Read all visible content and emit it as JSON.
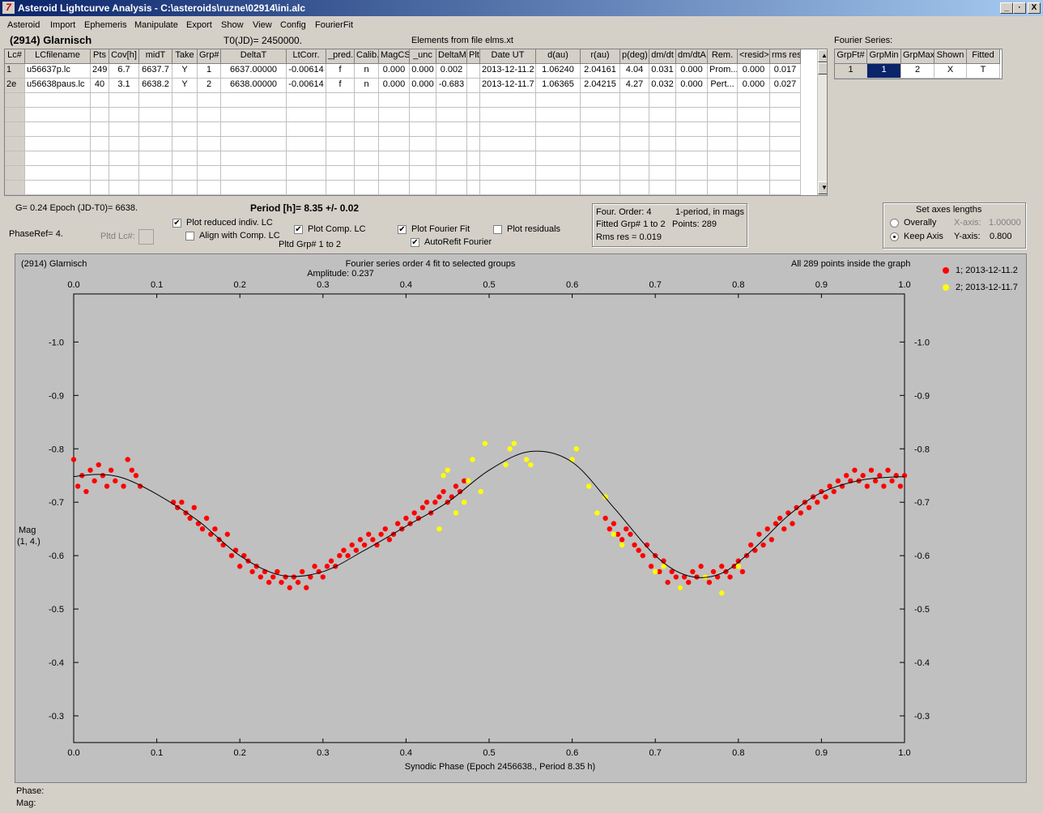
{
  "window": {
    "title": "Asteroid Lightcurve Analysis - C:\\asteroids\\ruzne\\02914\\ini.alc",
    "buttons": [
      "_",
      "·",
      "X"
    ]
  },
  "menu": [
    "Asteroid",
    "Import",
    "Ephemeris",
    "Manipulate",
    "Export",
    "Show",
    "View",
    "Config",
    "FourierFit"
  ],
  "header": {
    "asteroid": "(2914) Glarnisch",
    "t0": "T0(JD)= 2450000.",
    "elements": "Elements from file elms.xt",
    "fourier_series_label": "Fourier Series:"
  },
  "lc_table": {
    "columns": [
      "Lc#",
      "LCfilename",
      "Pts",
      "Cov[h]",
      "midT",
      "Take",
      "Grp#",
      "DeltaT",
      "LtCorr.",
      "_pred.",
      "Calib.",
      "MagCS",
      "_unc",
      "DeltaM",
      "Plt",
      "Date UT",
      "d(au)",
      "r(au)",
      "p(deg)",
      "dm/dt",
      "dm/dtA",
      "Rem.",
      "<resid>",
      "rms res"
    ],
    "rows": [
      [
        "1",
        "u56637p.lc",
        "249",
        "6.7",
        "6637.7",
        "Y",
        "1",
        "6637.00000",
        "-0.00614",
        "f",
        "n",
        "0.000",
        "0.000",
        "0.002",
        "",
        "2013-12-11.2",
        "1.06240",
        "2.04161",
        "4.04",
        "0.031",
        "0.000",
        "Prom...",
        "0.000",
        "0.017"
      ],
      [
        "2e",
        "u56638paus.lc",
        "40",
        "3.1",
        "6638.2",
        "Y",
        "2",
        "6638.00000",
        "-0.00614",
        "f",
        "n",
        "0.000",
        "0.000",
        "-0.683",
        "",
        "2013-12-11.7",
        "1.06365",
        "2.04215",
        "4.27",
        "0.032",
        "0.000",
        "Pert...",
        "0.000",
        "0.027"
      ]
    ],
    "empty_rows": 7
  },
  "fourier_table": {
    "columns": [
      "GrpFt#",
      "GrpMin",
      "GrpMax",
      "Shown",
      "Fitted"
    ],
    "rows": [
      [
        "1",
        "1",
        "2",
        "X",
        "T"
      ]
    ]
  },
  "controls": {
    "g_epoch": "G= 0.24   Epoch (JD-T0)= 6638.",
    "period": "Period [h]= 8.35 +/- 0.02",
    "phase_ref": "PhaseRef= 4.",
    "pltd_lc": "Pltd Lc#:",
    "plot_reduced": "Plot reduced indiv. LC",
    "align_comp": "Align with Comp. LC",
    "plot_comp": "Plot Comp. LC",
    "pltd_grp": "Pltd Grp#  1   to   2",
    "plot_fourier": "Plot Fourier Fit",
    "autorefit": "AutoRefit Fourier",
    "plot_residuals": "Plot residuals",
    "checked": {
      "plot_reduced": true,
      "align_comp": false,
      "plot_comp": true,
      "plot_fourier": true,
      "autorefit": true,
      "plot_residuals": false
    },
    "info": {
      "four_order": "Four. Order:  4",
      "one_period": "1-period, in mags",
      "fitted_grp": "Fitted Grp# 1 to 2",
      "points": "Points: 289",
      "rms": "Rms res     = 0.019"
    },
    "axes": {
      "title": "Set axes lengths",
      "overall": "Overally",
      "keep": "Keep Axis",
      "xaxis_label": "X-axis:",
      "xaxis_val": "1.00000",
      "yaxis_label": "Y-axis:",
      "yaxis_val": "0.800",
      "selected": "keep"
    }
  },
  "plot": {
    "name": "(2914) Glarnisch",
    "subtitle1": "Fourier series order 4 fit to selected groups",
    "subtitle2": "Amplitude: 0.237",
    "points_note": "All 289 points inside the graph",
    "ylabel1": "Mag",
    "ylabel2": "(1, 4.)",
    "xlabel": "Synodic Phase (Epoch 2456638., Period 8.35 h)",
    "legend": [
      {
        "label": "1; 2013-12-11.2",
        "color": "#ff0000"
      },
      {
        "label": "2; 2013-12-11.7",
        "color": "#ffff00"
      }
    ]
  },
  "status": {
    "phase": "Phase:",
    "mag": "Mag:"
  },
  "chart_data": {
    "type": "scatter",
    "xlabel": "Synodic Phase (Epoch 2456638., Period 8.35 h)",
    "ylabel": "Mag (1, 4.)",
    "xlim": [
      0.0,
      1.0
    ],
    "ylim": [
      -0.25,
      -1.09
    ],
    "y_inverted": true,
    "x_ticks": [
      "0.0",
      "0.1",
      "0.2",
      "0.3",
      "0.4",
      "0.5",
      "0.6",
      "0.7",
      "0.8",
      "0.9",
      "1.0"
    ],
    "y_ticks": [
      "-1.0",
      "-0.9",
      "-0.8",
      "-0.7",
      "-0.6",
      "-0.5",
      "-0.4",
      "-0.3"
    ],
    "fourier_fit": {
      "x": [
        0.0,
        0.03,
        0.06,
        0.1,
        0.15,
        0.2,
        0.25,
        0.3,
        0.35,
        0.4,
        0.45,
        0.5,
        0.55,
        0.6,
        0.65,
        0.7,
        0.74,
        0.78,
        0.82,
        0.86,
        0.9,
        0.95,
        1.0
      ],
      "y": [
        -0.748,
        -0.752,
        -0.745,
        -0.715,
        -0.665,
        -0.6,
        -0.563,
        -0.57,
        -0.61,
        -0.655,
        -0.7,
        -0.76,
        -0.795,
        -0.775,
        -0.69,
        -0.6,
        -0.562,
        -0.567,
        -0.615,
        -0.675,
        -0.718,
        -0.742,
        -0.748
      ]
    },
    "series": [
      {
        "name": "1; 2013-12-11.2",
        "color": "#ff0000",
        "x": [
          0.0,
          0.005,
          0.01,
          0.015,
          0.02,
          0.025,
          0.03,
          0.035,
          0.04,
          0.045,
          0.05,
          0.06,
          0.065,
          0.07,
          0.075,
          0.08,
          0.12,
          0.125,
          0.13,
          0.135,
          0.14,
          0.145,
          0.15,
          0.155,
          0.16,
          0.165,
          0.17,
          0.175,
          0.18,
          0.185,
          0.19,
          0.195,
          0.2,
          0.205,
          0.21,
          0.215,
          0.22,
          0.225,
          0.23,
          0.235,
          0.24,
          0.245,
          0.25,
          0.255,
          0.26,
          0.265,
          0.27,
          0.275,
          0.28,
          0.285,
          0.29,
          0.295,
          0.3,
          0.305,
          0.31,
          0.315,
          0.32,
          0.325,
          0.33,
          0.335,
          0.34,
          0.345,
          0.35,
          0.355,
          0.36,
          0.365,
          0.37,
          0.375,
          0.38,
          0.385,
          0.39,
          0.395,
          0.4,
          0.405,
          0.41,
          0.415,
          0.42,
          0.425,
          0.43,
          0.435,
          0.44,
          0.445,
          0.45,
          0.455,
          0.46,
          0.465,
          0.47,
          0.64,
          0.645,
          0.65,
          0.655,
          0.66,
          0.665,
          0.67,
          0.675,
          0.68,
          0.685,
          0.69,
          0.695,
          0.7,
          0.705,
          0.71,
          0.715,
          0.72,
          0.725,
          0.73,
          0.735,
          0.74,
          0.745,
          0.75,
          0.755,
          0.76,
          0.765,
          0.77,
          0.775,
          0.78,
          0.785,
          0.79,
          0.795,
          0.8,
          0.805,
          0.81,
          0.815,
          0.82,
          0.825,
          0.83,
          0.835,
          0.84,
          0.845,
          0.85,
          0.855,
          0.86,
          0.865,
          0.87,
          0.875,
          0.88,
          0.885,
          0.89,
          0.895,
          0.9,
          0.905,
          0.91,
          0.915,
          0.92,
          0.925,
          0.93,
          0.935,
          0.94,
          0.945,
          0.95,
          0.955,
          0.96,
          0.965,
          0.97,
          0.975,
          0.98,
          0.985,
          0.99,
          0.995,
          1.0
        ],
        "y": [
          -0.78,
          -0.73,
          -0.75,
          -0.72,
          -0.76,
          -0.74,
          -0.77,
          -0.75,
          -0.73,
          -0.76,
          -0.74,
          -0.73,
          -0.78,
          -0.76,
          -0.75,
          -0.73,
          -0.7,
          -0.69,
          -0.7,
          -0.68,
          -0.67,
          -0.69,
          -0.66,
          -0.65,
          -0.67,
          -0.64,
          -0.65,
          -0.63,
          -0.62,
          -0.64,
          -0.6,
          -0.61,
          -0.58,
          -0.6,
          -0.59,
          -0.57,
          -0.58,
          -0.56,
          -0.57,
          -0.55,
          -0.56,
          -0.57,
          -0.55,
          -0.56,
          -0.54,
          -0.56,
          -0.55,
          -0.57,
          -0.54,
          -0.56,
          -0.58,
          -0.57,
          -0.56,
          -0.58,
          -0.59,
          -0.58,
          -0.6,
          -0.61,
          -0.6,
          -0.62,
          -0.61,
          -0.63,
          -0.62,
          -0.64,
          -0.63,
          -0.62,
          -0.64,
          -0.65,
          -0.63,
          -0.64,
          -0.66,
          -0.65,
          -0.67,
          -0.66,
          -0.68,
          -0.67,
          -0.69,
          -0.7,
          -0.68,
          -0.7,
          -0.71,
          -0.72,
          -0.7,
          -0.71,
          -0.73,
          -0.72,
          -0.74,
          -0.67,
          -0.65,
          -0.66,
          -0.64,
          -0.63,
          -0.65,
          -0.64,
          -0.62,
          -0.61,
          -0.6,
          -0.62,
          -0.58,
          -0.6,
          -0.57,
          -0.59,
          -0.55,
          -0.57,
          -0.56,
          -0.54,
          -0.56,
          -0.55,
          -0.57,
          -0.56,
          -0.58,
          -0.56,
          -0.55,
          -0.57,
          -0.56,
          -0.58,
          -0.57,
          -0.56,
          -0.58,
          -0.59,
          -0.57,
          -0.6,
          -0.62,
          -0.61,
          -0.64,
          -0.62,
          -0.65,
          -0.63,
          -0.66,
          -0.67,
          -0.65,
          -0.68,
          -0.66,
          -0.69,
          -0.68,
          -0.7,
          -0.69,
          -0.71,
          -0.7,
          -0.72,
          -0.71,
          -0.73,
          -0.72,
          -0.74,
          -0.73,
          -0.75,
          -0.74,
          -0.76,
          -0.74,
          -0.75,
          -0.73,
          -0.76,
          -0.74,
          -0.75,
          -0.73,
          -0.76,
          -0.74,
          -0.75,
          -0.73,
          -0.75
        ]
      },
      {
        "name": "2; 2013-12-11.7",
        "color": "#ffff00",
        "x": [
          0.44,
          0.445,
          0.45,
          0.46,
          0.47,
          0.475,
          0.48,
          0.49,
          0.495,
          0.52,
          0.525,
          0.53,
          0.545,
          0.55,
          0.6,
          0.605,
          0.62,
          0.63,
          0.64,
          0.65,
          0.66,
          0.7,
          0.71,
          0.73,
          0.76,
          0.78,
          0.8
        ],
        "y": [
          -0.65,
          -0.75,
          -0.76,
          -0.68,
          -0.7,
          -0.74,
          -0.78,
          -0.72,
          -0.81,
          -0.77,
          -0.8,
          -0.81,
          -0.78,
          -0.77,
          -0.78,
          -0.8,
          -0.73,
          -0.68,
          -0.71,
          -0.64,
          -0.62,
          -0.57,
          -0.58,
          -0.54,
          -0.56,
          -0.53,
          -0.58
        ]
      }
    ]
  }
}
